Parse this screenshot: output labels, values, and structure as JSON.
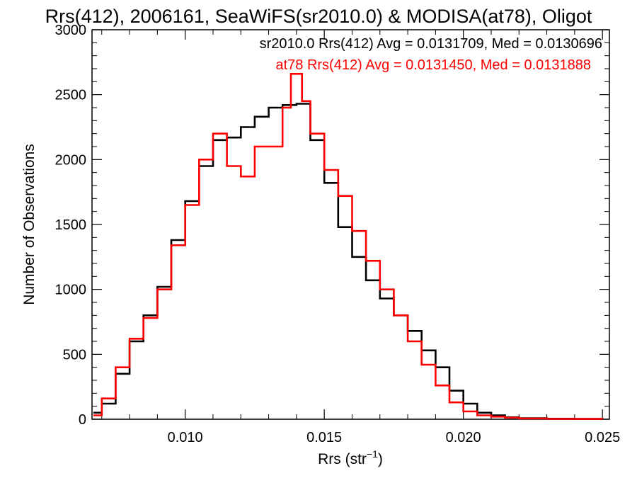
{
  "chart_data": {
    "type": "line",
    "title": "Rrs(412), 2006161, SeaWiFS(sr2010.0) & MODISA(at78), Oligot",
    "xlabel_base": "Rrs (str",
    "xlabel_sup": "−1",
    "xlabel_close": ")",
    "ylabel": "Number of Observations",
    "xlim": [
      0.00665,
      0.02525
    ],
    "ylim": [
      0,
      3000
    ],
    "xticks": [
      0.01,
      0.015,
      0.02,
      0.025
    ],
    "xtick_labels": [
      "0.010",
      "0.015",
      "0.020",
      "0.025"
    ],
    "yticks": [
      0,
      500,
      1000,
      1500,
      2000,
      2500,
      3000
    ],
    "ytick_labels": [
      "0",
      "500",
      "1000",
      "1500",
      "2000",
      "2500",
      "3000"
    ],
    "grid": false,
    "legend_placement": "top-right",
    "series": [
      {
        "name": "sr2010.0",
        "legend_text": "sr2010.0 Rrs(412) Avg = 0.0131709, Med = 0.0130696",
        "color": "#000000",
        "points": [
          [
            0.0067,
            50
          ],
          [
            0.007,
            120
          ],
          [
            0.0075,
            350
          ],
          [
            0.008,
            600
          ],
          [
            0.0085,
            800
          ],
          [
            0.009,
            1020
          ],
          [
            0.0095,
            1380
          ],
          [
            0.01,
            1680
          ],
          [
            0.0105,
            1950
          ],
          [
            0.011,
            2150
          ],
          [
            0.0115,
            2170
          ],
          [
            0.012,
            2250
          ],
          [
            0.0125,
            2330
          ],
          [
            0.013,
            2400
          ],
          [
            0.0135,
            2420
          ],
          [
            0.014,
            2430
          ],
          [
            0.0145,
            2150
          ],
          [
            0.015,
            1820
          ],
          [
            0.0155,
            1480
          ],
          [
            0.016,
            1250
          ],
          [
            0.0165,
            1070
          ],
          [
            0.017,
            930
          ],
          [
            0.0175,
            800
          ],
          [
            0.018,
            680
          ],
          [
            0.0185,
            530
          ],
          [
            0.019,
            400
          ],
          [
            0.0195,
            220
          ],
          [
            0.02,
            120
          ],
          [
            0.0205,
            50
          ],
          [
            0.021,
            30
          ],
          [
            0.0215,
            15
          ],
          [
            0.022,
            8
          ],
          [
            0.023,
            4
          ],
          [
            0.024,
            2
          ],
          [
            0.025,
            1
          ]
        ]
      },
      {
        "name": "at78",
        "legend_text": "at78 Rrs(412) Avg = 0.0131450, Med = 0.0131888",
        "color": "#ff0000",
        "points": [
          [
            0.0067,
            30
          ],
          [
            0.007,
            160
          ],
          [
            0.0075,
            400
          ],
          [
            0.008,
            620
          ],
          [
            0.0085,
            780
          ],
          [
            0.009,
            1000
          ],
          [
            0.0095,
            1340
          ],
          [
            0.01,
            1650
          ],
          [
            0.0105,
            2000
          ],
          [
            0.011,
            2200
          ],
          [
            0.0115,
            1950
          ],
          [
            0.012,
            1870
          ],
          [
            0.0125,
            2100
          ],
          [
            0.013,
            2100
          ],
          [
            0.0135,
            2400
          ],
          [
            0.0138,
            2660
          ],
          [
            0.0142,
            2450
          ],
          [
            0.0145,
            2200
          ],
          [
            0.015,
            1920
          ],
          [
            0.0155,
            1720
          ],
          [
            0.016,
            1450
          ],
          [
            0.0165,
            1220
          ],
          [
            0.017,
            1000
          ],
          [
            0.0175,
            800
          ],
          [
            0.018,
            600
          ],
          [
            0.0185,
            420
          ],
          [
            0.019,
            260
          ],
          [
            0.0195,
            130
          ],
          [
            0.02,
            60
          ],
          [
            0.0205,
            30
          ],
          [
            0.021,
            20
          ],
          [
            0.0215,
            12
          ],
          [
            0.022,
            6
          ],
          [
            0.023,
            3
          ],
          [
            0.024,
            2
          ],
          [
            0.025,
            1
          ]
        ]
      }
    ]
  }
}
